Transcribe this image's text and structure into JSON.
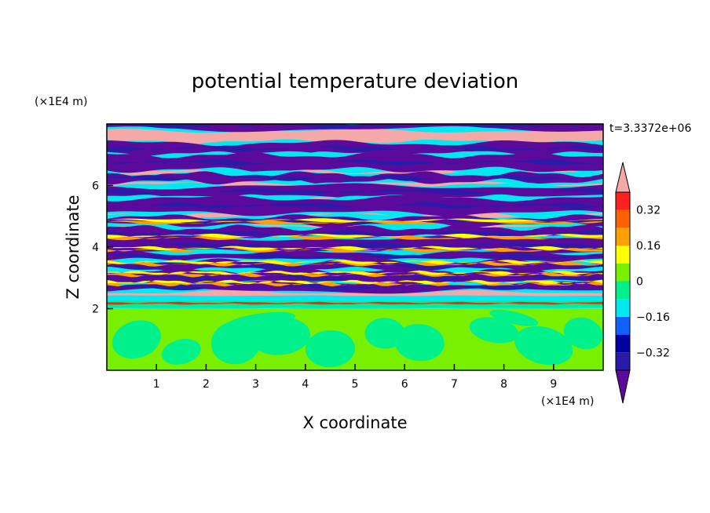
{
  "chart_data": {
    "type": "heatmap",
    "title": "potential temperature deviation",
    "xlabel": "X coordinate",
    "ylabel": "Z coordinate",
    "x_unit_label": "(×1E4 m)",
    "y_unit_label": "(×1E4 m)",
    "time_label": "t=3.3372e+06",
    "xlim": [
      0,
      10
    ],
    "ylim": [
      0,
      8
    ],
    "x_ticks": [
      1,
      2,
      3,
      4,
      5,
      6,
      7,
      8,
      9
    ],
    "y_ticks": [
      2,
      4,
      6
    ],
    "grid": false,
    "colorbar": {
      "levels": [
        -0.4,
        -0.32,
        -0.24,
        -0.16,
        -0.08,
        0,
        0.08,
        0.16,
        0.24,
        0.32,
        0.4
      ],
      "colors": [
        "#5c0a9c",
        "#2a1aa8",
        "#0000a0",
        "#1060ff",
        "#00e8f0",
        "#00f08c",
        "#78f000",
        "#ffff00",
        "#ffa000",
        "#ff6000",
        "#ff2020",
        "#f4a8a8"
      ],
      "tick_labels": [
        "0.32",
        "0.16",
        "0",
        "−0.16",
        "−0.32"
      ],
      "tick_values": [
        0.32,
        0.16,
        0,
        -0.16,
        -0.32
      ],
      "extend": "both"
    },
    "layers": [
      {
        "z_range": [
          0,
          2.0
        ],
        "pattern": "green mix of 0 and 0.08 levels with swirls"
      },
      {
        "z_range": [
          2.0,
          2.4
        ],
        "pattern": "cyan/green transition layer"
      },
      {
        "z_range": [
          2.4,
          8.0
        ],
        "pattern": "alternating bands of pink (>0.4) and purple (<-0.4) with thin colored edges"
      }
    ]
  }
}
